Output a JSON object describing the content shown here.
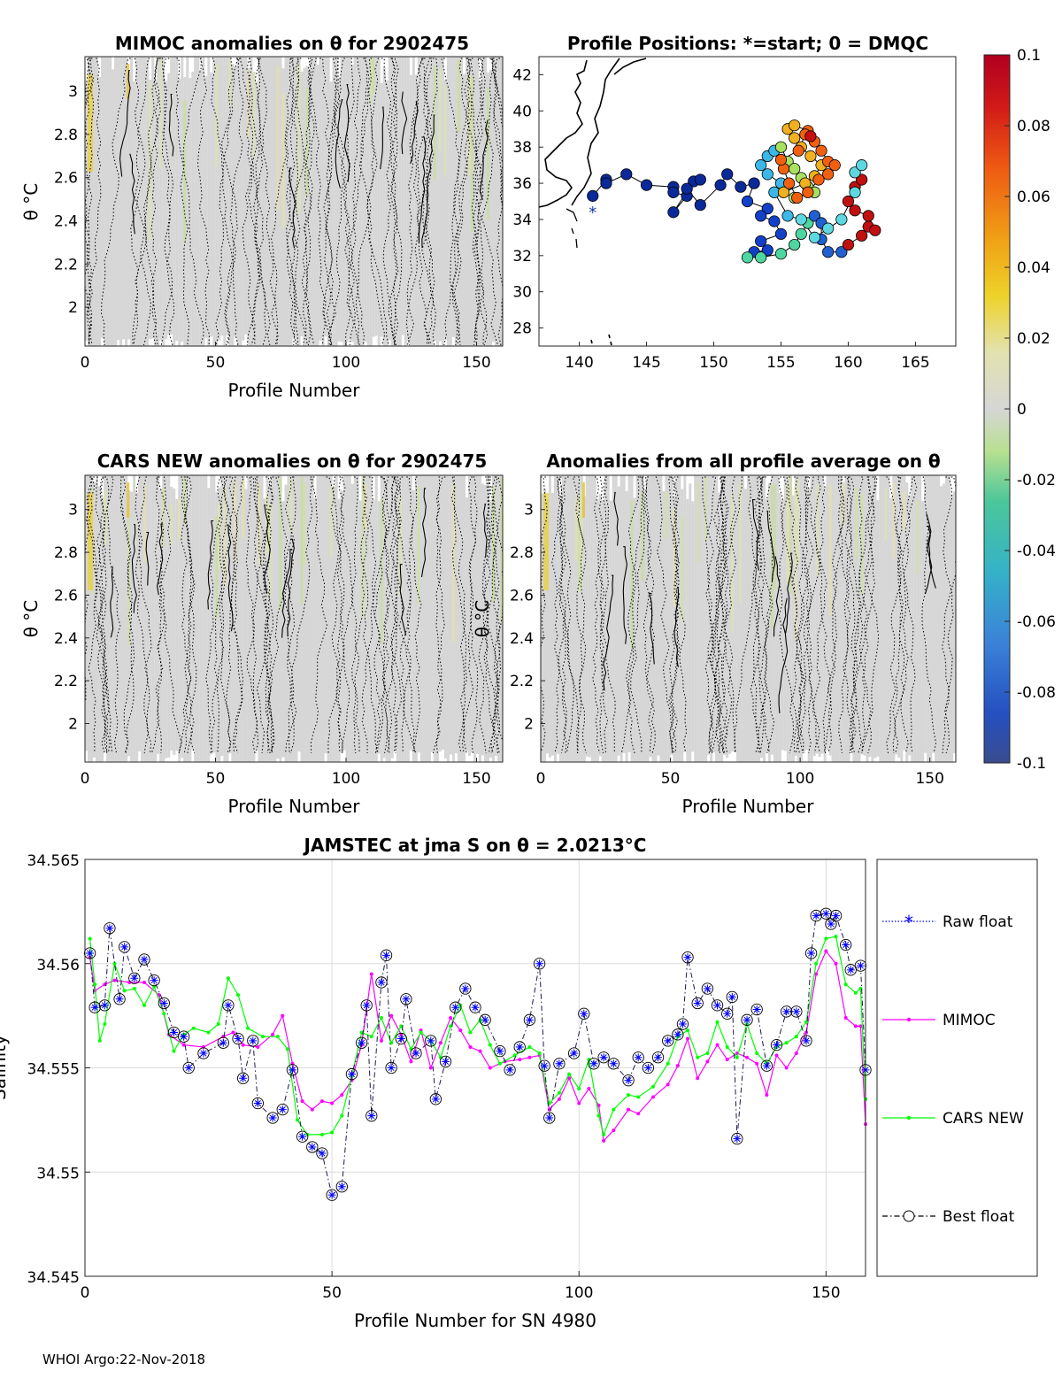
{
  "footer": "WHOI Argo:22-Nov-2018",
  "chart_data": [
    {
      "id": "mimoc",
      "type": "heatmap",
      "title": "MIMOC anomalies on θ  for 2902475",
      "xlabel": "Profile Number",
      "ylabel": "θ °C",
      "xlim": [
        0,
        160
      ],
      "ylim": [
        1.82,
        3.16
      ],
      "xticks": [
        0,
        50,
        100,
        150
      ],
      "yticks": [
        2,
        2.2,
        2.4,
        2.6,
        2.8,
        3
      ]
    },
    {
      "id": "positions",
      "type": "scatter",
      "title": "Profile Positions: *=start; 0 = DMQC",
      "xlim": [
        137,
        168
      ],
      "ylim": [
        27,
        43
      ],
      "xticks": [
        140,
        145,
        150,
        155,
        160,
        165
      ],
      "yticks": [
        28,
        30,
        32,
        34,
        36,
        38,
        40,
        42
      ],
      "start": [
        141,
        34.4
      ]
    },
    {
      "id": "colorbar",
      "type": "heatmap",
      "clim": [
        -0.1,
        0.1
      ],
      "ticks": [
        "0.1",
        "0.08",
        "0.06",
        "0.04",
        "0.02",
        "0",
        "-0.02",
        "-0.04",
        "-0.06",
        "-0.08",
        "-0.1"
      ]
    },
    {
      "id": "cars",
      "type": "heatmap",
      "title": "CARS NEW anomalies on θ for 2902475",
      "xlabel": "Profile Number",
      "ylabel": "θ °C",
      "xlim": [
        0,
        160
      ],
      "ylim": [
        1.82,
        3.16
      ],
      "xticks": [
        0,
        50,
        100,
        150
      ],
      "yticks": [
        2,
        2.2,
        2.4,
        2.6,
        2.8,
        3
      ]
    },
    {
      "id": "avg",
      "type": "heatmap",
      "title": "Anomalies from all profile average on θ",
      "xlabel": "Profile Number",
      "ylabel": "θ °C",
      "xlim": [
        0,
        160
      ],
      "ylim": [
        1.82,
        3.16
      ],
      "xticks": [
        0,
        50,
        100,
        150
      ],
      "yticks": [
        2,
        2.2,
        2.4,
        2.6,
        2.8,
        3
      ]
    },
    {
      "id": "salinity",
      "type": "line",
      "title": "JAMSTEC at jma S on θ = 2.0213°C",
      "xlabel": "Profile Number for SN 4980",
      "ylabel": "Salinity",
      "xlim": [
        0,
        158
      ],
      "ylim": [
        34.545,
        34.565
      ],
      "xticks": [
        0,
        50,
        100,
        150
      ],
      "yticks": [
        "34.545",
        "34.55",
        "34.555",
        "34.56",
        "34.565"
      ],
      "grid": true,
      "legend_position": "right",
      "series": [
        {
          "name": "Raw float",
          "color": "#0000ff",
          "style": "dotted",
          "marker": "*"
        },
        {
          "name": "MIMOC",
          "color": "#ff00ff",
          "style": "solid",
          "marker": "."
        },
        {
          "name": "CARS NEW",
          "color": "#00ff00",
          "style": "solid",
          "marker": "."
        },
        {
          "name": "Best float",
          "color": "#000000",
          "style": "dashdot",
          "marker": "o"
        }
      ]
    }
  ]
}
